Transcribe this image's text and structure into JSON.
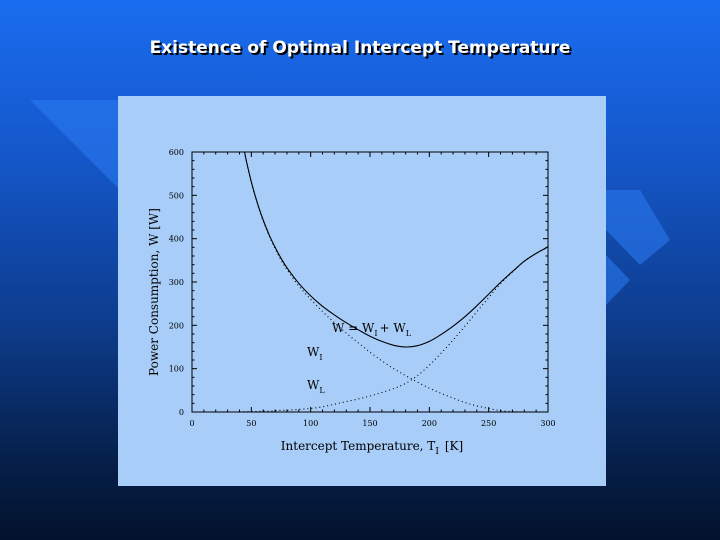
{
  "slide": {
    "title": "Existence of Optimal Intercept Temperature",
    "colors": {
      "background_top": "#1a6df0",
      "background_bottom": "#03122c",
      "panel": "#a7cdf8",
      "title": "#ffffff"
    }
  },
  "chart_data": {
    "type": "line",
    "title": "",
    "xlabel": "Intercept Temperature, T",
    "xlabel_sub": "I",
    "xlabel_unit": "[K]",
    "ylabel": "Power Consumption, W [W]",
    "xlim": [
      0,
      300
    ],
    "ylim": [
      0,
      600
    ],
    "x_ticks": [
      "0",
      "50",
      "100",
      "150",
      "200",
      "250",
      "300"
    ],
    "y_ticks": [
      "0",
      "100",
      "200",
      "300",
      "400",
      "500",
      "600"
    ],
    "grid": false,
    "series": [
      {
        "name": "W = W",
        "name_sub": "I",
        "name_rest": "+ W",
        "name_sub2": "L",
        "style": "solid",
        "x": [
          40,
          45,
          50,
          55,
          60,
          65,
          70,
          75,
          80,
          90,
          100,
          110,
          120,
          130,
          140,
          150,
          160,
          170,
          180,
          190,
          200,
          210,
          220,
          230,
          240,
          250,
          260,
          270,
          280,
          290,
          300
        ],
        "y": [
          664,
          590,
          531,
          483,
          443,
          409,
          380,
          355,
          333,
          297,
          268,
          244,
          224,
          206,
          190,
          175,
          163,
          154,
          150,
          153,
          163,
          179,
          198,
          220,
          245,
          272,
          299,
          324,
          348,
          366,
          381
        ]
      },
      {
        "name": "W",
        "name_sub": "I",
        "style": "dotted",
        "x": [
          40,
          45,
          50,
          55,
          60,
          65,
          70,
          75,
          80,
          90,
          100,
          110,
          120,
          130,
          140,
          150,
          160,
          170,
          180,
          190,
          200,
          210,
          220,
          230,
          240,
          250,
          260,
          270,
          280,
          290,
          300
        ],
        "y": [
          664,
          589,
          530,
          482,
          441,
          407,
          377,
          351,
          329,
          291,
          260,
          232,
          206,
          182,
          160,
          138,
          118,
          100,
          84,
          69,
          55,
          43,
          32,
          22,
          14,
          8,
          3,
          1,
          0,
          0,
          0
        ]
      },
      {
        "name": "W",
        "name_sub": "L",
        "style": "dotted",
        "x": [
          40,
          45,
          50,
          55,
          60,
          65,
          70,
          75,
          80,
          90,
          100,
          110,
          120,
          130,
          140,
          150,
          160,
          170,
          180,
          190,
          200,
          210,
          220,
          230,
          240,
          250,
          260,
          270,
          280,
          290,
          300
        ],
        "y": [
          0,
          1,
          1,
          1,
          2,
          2,
          3,
          4,
          4,
          6,
          8,
          12,
          18,
          24,
          30,
          37,
          45,
          54,
          66,
          84,
          108,
          136,
          166,
          198,
          231,
          264,
          296,
          323,
          348,
          366,
          381
        ]
      }
    ]
  }
}
